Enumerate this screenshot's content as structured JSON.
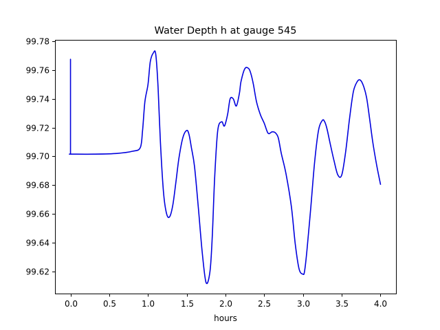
{
  "chart_data": {
    "type": "line",
    "title": "Water Depth h at gauge 545",
    "xlabel": "hours",
    "ylabel": "",
    "xlim": [
      -0.2,
      4.2
    ],
    "ylim": [
      99.6045,
      99.781
    ],
    "xticks": [
      0.0,
      0.5,
      1.0,
      1.5,
      2.0,
      2.5,
      3.0,
      3.5,
      4.0
    ],
    "xtick_labels": [
      "0.0",
      "0.5",
      "1.0",
      "1.5",
      "2.0",
      "2.5",
      "3.0",
      "3.5",
      "4.0"
    ],
    "yticks": [
      99.62,
      99.64,
      99.66,
      99.68,
      99.7,
      99.72,
      99.74,
      99.76,
      99.78
    ],
    "ytick_labels": [
      "99.62",
      "99.64",
      "99.66",
      "99.68",
      "99.70",
      "99.72",
      "99.74",
      "99.76",
      "99.78"
    ],
    "grid": false,
    "legend": "none",
    "series": [
      {
        "color": "#0000dd",
        "x": [
          0.0,
          0.0,
          0.01,
          0.3,
          0.6,
          0.8,
          0.9,
          0.93,
          0.96,
          1.0,
          1.03,
          1.07,
          1.1,
          1.13,
          1.16,
          1.2,
          1.24,
          1.28,
          1.32,
          1.36,
          1.4,
          1.45,
          1.5,
          1.53,
          1.56,
          1.6,
          1.65,
          1.7,
          1.75,
          1.8,
          1.83,
          1.86,
          1.9,
          1.95,
          1.98,
          2.0,
          2.03,
          2.06,
          2.1,
          2.14,
          2.18,
          2.2,
          2.25,
          2.3,
          2.33,
          2.36,
          2.4,
          2.45,
          2.5,
          2.55,
          2.6,
          2.64,
          2.68,
          2.72,
          2.78,
          2.85,
          2.9,
          2.95,
          3.0,
          3.02,
          3.05,
          3.1,
          3.15,
          3.2,
          3.25,
          3.28,
          3.31,
          3.35,
          3.4,
          3.45,
          3.5,
          3.55,
          3.6,
          3.65,
          3.7,
          3.74,
          3.78,
          3.82,
          3.86,
          3.9,
          3.95,
          4.0
        ],
        "y": [
          99.7675,
          99.7015,
          99.7015,
          99.7015,
          99.702,
          99.7035,
          99.706,
          99.718,
          99.738,
          99.75,
          99.766,
          99.772,
          99.771,
          99.748,
          99.71,
          99.675,
          99.66,
          99.658,
          99.666,
          99.682,
          99.699,
          99.713,
          99.718,
          99.715,
          99.706,
          99.693,
          99.664,
          99.633,
          99.612,
          99.62,
          99.645,
          99.685,
          99.718,
          99.724,
          99.721,
          99.723,
          99.73,
          99.74,
          99.74,
          99.735,
          99.744,
          99.752,
          99.761,
          99.761,
          99.757,
          99.75,
          99.738,
          99.729,
          99.723,
          99.716,
          99.717,
          99.7165,
          99.713,
          99.702,
          99.688,
          99.665,
          99.639,
          99.6215,
          99.618,
          99.62,
          99.634,
          99.664,
          99.696,
          99.718,
          99.725,
          99.724,
          99.719,
          99.709,
          99.697,
          99.687,
          99.687,
          99.703,
          99.726,
          99.745,
          99.752,
          99.753,
          99.749,
          99.741,
          99.726,
          99.71,
          99.694,
          99.6805
        ]
      }
    ]
  }
}
